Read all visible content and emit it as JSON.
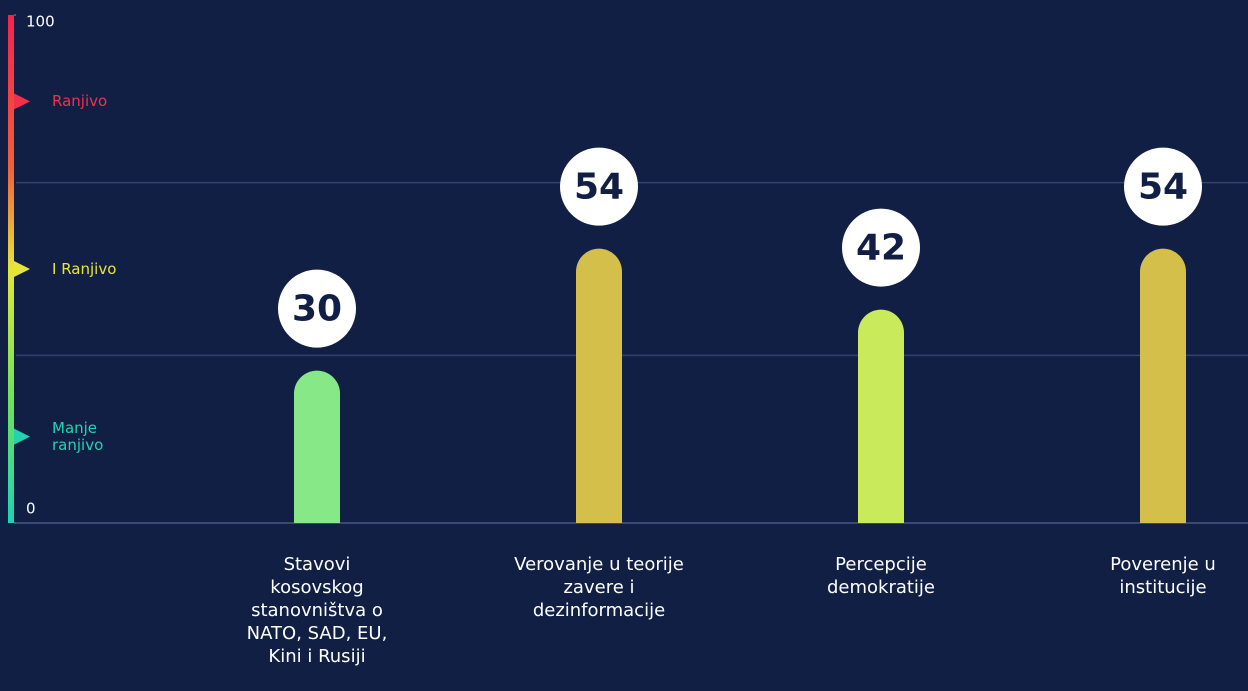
{
  "chart_data": {
    "type": "bar",
    "categories": [
      "Stavovi kosovskog stanovništva o NATO, SAD, EU, Kini i Rusiji",
      "Verovanje u teorije zavere i dezinformacije",
      "Percepcije demokratije",
      "Poverenje u institucije"
    ],
    "values": [
      30,
      54,
      42,
      54
    ],
    "colors": [
      "#86e887",
      "#d4bf4a",
      "#c9ea5a",
      "#d4bf4a"
    ],
    "ylim": [
      0,
      100
    ],
    "yticks": [
      0,
      100
    ],
    "grid_lines": [
      33,
      67
    ],
    "bands": [
      {
        "label": "Ranjivo",
        "value": 83,
        "color": "#f2304c"
      },
      {
        "label": "I Ranjivo",
        "value": 50,
        "color": "#e6e63a"
      },
      {
        "label": "Manje ranjivo",
        "value": 17,
        "color": "#22d3b0"
      }
    ]
  }
}
